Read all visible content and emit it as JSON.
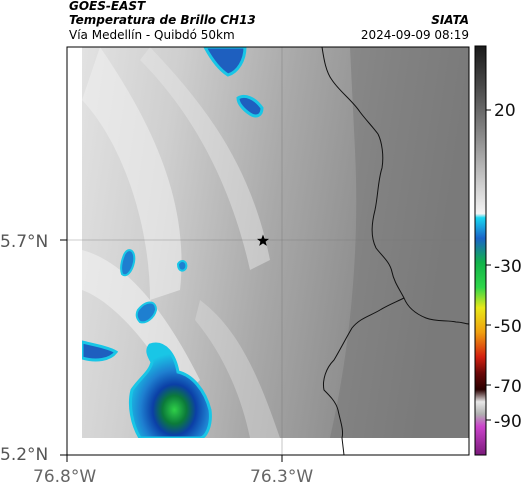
{
  "header": {
    "title_line1": "GOES-EAST",
    "title_line2": "Temperatura de Brillo CH13",
    "subtitle": "Vía Medellín - Quibdó 50km",
    "organization": "SIATA",
    "datetime": "2024-09-09 08:19"
  },
  "map": {
    "y_tick_labels": [
      "5.7°N",
      "5.2°N"
    ],
    "x_tick_labels": [
      "76.8°W",
      "76.3°W"
    ],
    "marker": "star-marker"
  },
  "colorbar": {
    "tick_labels": [
      "20",
      "-30",
      "-50",
      "-70",
      "-90"
    ]
  },
  "colors": {
    "cloud_cyan": "#19c6e6",
    "cloud_blue": "#1e5fbf",
    "cloud_deep_blue": "#0b3fa6",
    "cloud_green": "#2fd048",
    "border": "#000000"
  }
}
